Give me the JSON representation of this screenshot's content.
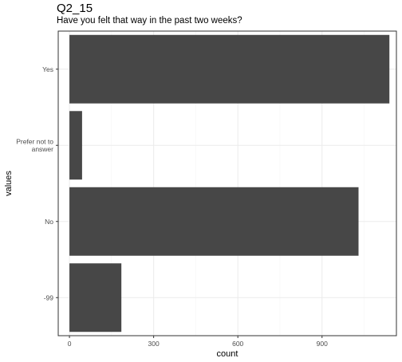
{
  "chart_data": {
    "type": "bar",
    "orientation": "horizontal",
    "title": "Q2_15",
    "subtitle": "Have you felt that way in the past two weeks?",
    "xlabel": "count",
    "ylabel": "values",
    "categories": [
      "Yes",
      "Prefer not to answer",
      "No",
      "-99"
    ],
    "category_label_lines": [
      [
        "Yes"
      ],
      [
        "Prefer not to",
        "answer"
      ],
      [
        "No"
      ],
      [
        "-99"
      ]
    ],
    "values": [
      1140,
      45,
      1030,
      185
    ],
    "xlim": [
      -40,
      1165
    ],
    "xticks": [
      0,
      300,
      600,
      900
    ],
    "xtick_labels": [
      "0",
      "300",
      "600",
      "900"
    ],
    "grid": true,
    "legend": "none",
    "colors": {
      "bar": "#474747",
      "grid_major": "#ebebeb",
      "grid_minor": "#f5f5f5",
      "panel_border": "#333333",
      "axis_text": "#4d4d4d"
    }
  }
}
